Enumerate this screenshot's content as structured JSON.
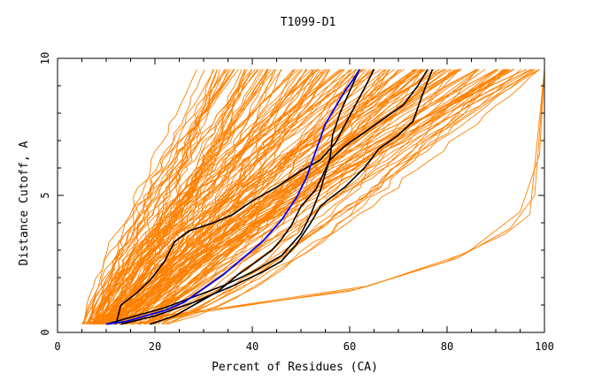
{
  "chart_data": {
    "type": "line",
    "title": "T1099-D1",
    "xlabel": "Percent of Residues (CA)",
    "ylabel": "Distance Cutoff, A",
    "xlim": [
      0,
      100
    ],
    "ylim": [
      0,
      10
    ],
    "x_ticks": [
      "0",
      "20",
      "40",
      "60",
      "80",
      "100"
    ],
    "y_ticks": [
      "0",
      "5",
      "10"
    ],
    "grid": false,
    "legend": "none",
    "colors": {
      "models": "#ff8000",
      "highlighted": "#000000",
      "best": "#0000ff"
    },
    "highlighted_series": [
      {
        "color": "#000000",
        "x": [
          12,
          13,
          16,
          19,
          22,
          24,
          27,
          32,
          36,
          40,
          45,
          50,
          54,
          57,
          60,
          63,
          65
        ],
        "y": [
          0.3,
          1.0,
          1.4,
          1.9,
          2.6,
          3.3,
          3.7,
          4.0,
          4.3,
          4.8,
          5.3,
          5.9,
          6.3,
          6.9,
          7.9,
          8.9,
          9.6
        ]
      },
      {
        "color": "#000000",
        "x": [
          10,
          16,
          22,
          28,
          34,
          40,
          46,
          50,
          52,
          54,
          55,
          56,
          56.5,
          58,
          60,
          62
        ],
        "y": [
          0.3,
          0.6,
          0.9,
          1.3,
          1.7,
          2.2,
          2.8,
          3.6,
          4.3,
          5.2,
          5.8,
          6.4,
          7.2,
          8.0,
          8.8,
          9.6
        ]
      },
      {
        "color": "#000000",
        "x": [
          13,
          20,
          28,
          36,
          42,
          46,
          49,
          52,
          54,
          56,
          59,
          63,
          66,
          70,
          73,
          75,
          77
        ],
        "y": [
          0.3,
          0.6,
          1.1,
          1.7,
          2.2,
          2.6,
          3.2,
          4.0,
          4.6,
          4.9,
          5.3,
          6.0,
          6.7,
          7.2,
          7.7,
          8.7,
          9.6
        ]
      },
      {
        "color": "#000000",
        "x": [
          19,
          24,
          28,
          33,
          37,
          41,
          44,
          46,
          48,
          50,
          53,
          56,
          59,
          63,
          67,
          71,
          74,
          76
        ],
        "y": [
          0.3,
          0.6,
          1.0,
          1.5,
          2.1,
          2.6,
          3.0,
          3.4,
          3.9,
          4.6,
          5.2,
          6.3,
          6.8,
          7.3,
          7.8,
          8.3,
          9.0,
          9.6
        ]
      }
    ],
    "best_series": [
      {
        "color": "#0000ff",
        "x": [
          10,
          14,
          18,
          22,
          26,
          30,
          34,
          38,
          42,
          46,
          49,
          51,
          53,
          55,
          57,
          59,
          61,
          62
        ],
        "y": [
          0.3,
          0.4,
          0.6,
          0.8,
          1.1,
          1.6,
          2.1,
          2.7,
          3.3,
          4.1,
          4.9,
          5.6,
          6.6,
          7.6,
          8.2,
          8.8,
          9.3,
          9.6
        ]
      }
    ],
    "model_series_count": 160,
    "model_envelope": {
      "start_x_range": [
        4,
        24
      ],
      "end_x_range": [
        26,
        99
      ],
      "outliers": [
        {
          "x": [
            7,
            30,
            60,
            80,
            92,
            97,
            100
          ],
          "y": [
            0.3,
            0.8,
            1.5,
            2.6,
            3.6,
            4.3,
            9.6
          ]
        },
        {
          "x": [
            8,
            32,
            62,
            82,
            93,
            98,
            100
          ],
          "y": [
            0.3,
            0.8,
            1.6,
            2.7,
            3.8,
            5.0,
            9.6
          ]
        },
        {
          "x": [
            9,
            34,
            64,
            84,
            95,
            99,
            100
          ],
          "y": [
            0.3,
            0.9,
            1.7,
            2.9,
            4.4,
            6.5,
            9.6
          ]
        }
      ]
    }
  }
}
